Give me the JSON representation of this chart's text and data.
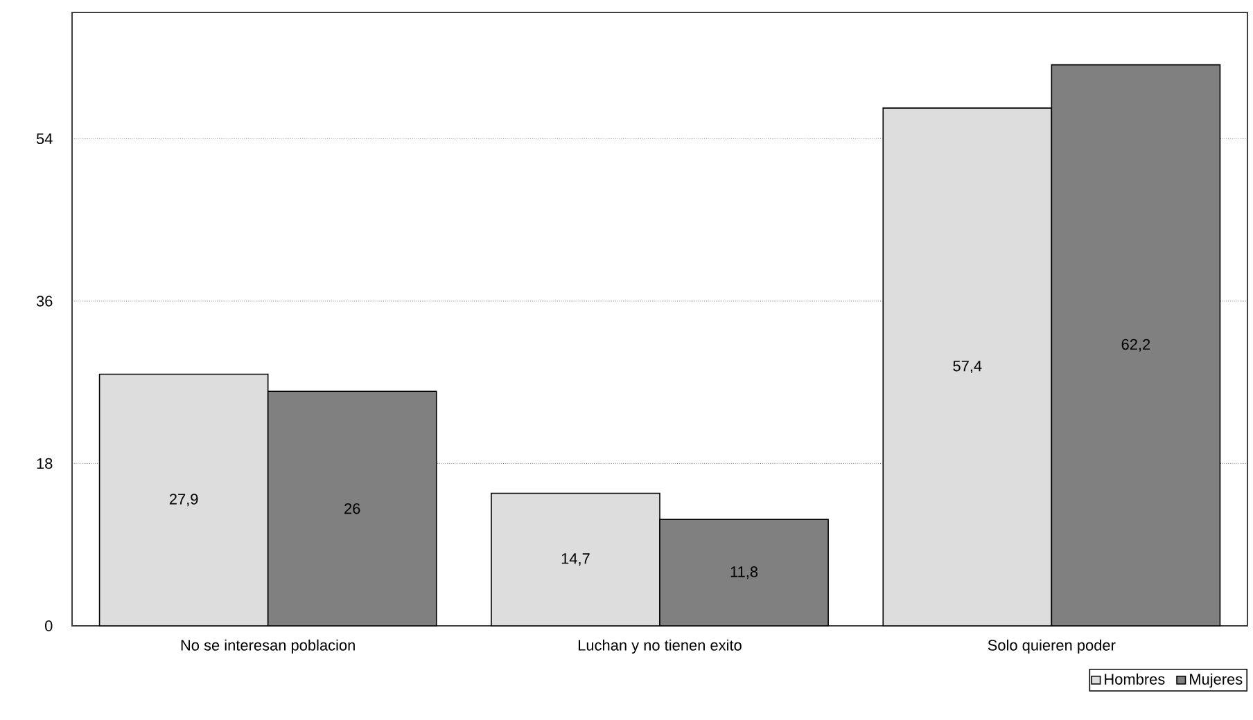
{
  "chart_data": {
    "type": "bar",
    "categories": [
      "No se interesan poblacion",
      "Luchan y no tienen exito",
      "Solo quieren poder"
    ],
    "series": [
      {
        "name": "Hombres",
        "color": "#dddddd",
        "values": [
          27.9,
          14.7,
          57.4
        ],
        "value_labels": [
          "27,9",
          "14,7",
          "57,4"
        ]
      },
      {
        "name": "Mujeres",
        "color": "#808080",
        "values": [
          26,
          11.8,
          62.2
        ],
        "value_labels": [
          "26",
          "11,8",
          "62,2"
        ]
      }
    ],
    "ylim": [
      0,
      68
    ],
    "yticks": [
      0,
      18,
      36,
      54
    ],
    "grid": "y",
    "legend": "bottom right"
  }
}
